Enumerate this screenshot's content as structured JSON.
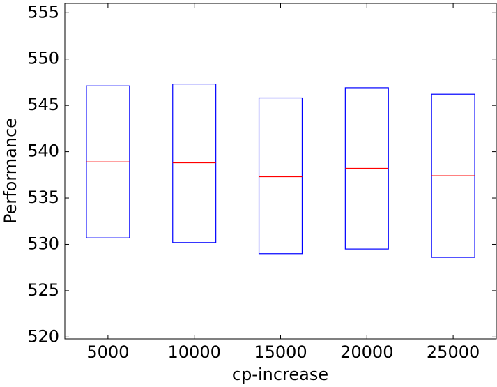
{
  "chart_data": {
    "type": "box",
    "x_label": "cp-increase",
    "y_label": "Performance",
    "x": [
      5000,
      10000,
      15000,
      20000,
      25000
    ],
    "lower": [
      530.7,
      530.2,
      529.0,
      529.5,
      528.6
    ],
    "median": [
      538.9,
      538.8,
      537.3,
      538.2,
      537.4
    ],
    "upper": [
      547.1,
      547.3,
      545.8,
      546.9,
      546.2
    ],
    "box_color": "#0000ff",
    "median_color": "#ff0000",
    "xlim": [
      2500,
      27500
    ],
    "xticks": [
      5000,
      10000,
      15000,
      20000,
      25000
    ],
    "ylim": [
      519.8,
      556
    ],
    "yticks": [
      520,
      525,
      530,
      535,
      540,
      545,
      550,
      555
    ]
  }
}
